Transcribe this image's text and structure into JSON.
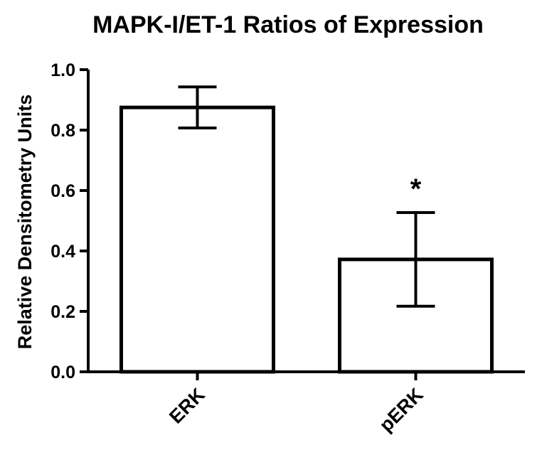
{
  "chart_data": {
    "type": "bar",
    "title": "MAPK-I/ET-1 Ratios of Expression",
    "xlabel": "",
    "ylabel": "Relative Densitometry Units",
    "ylim": [
      0,
      1.0
    ],
    "yticks": [
      "0.0",
      "0.2",
      "0.4",
      "0.6",
      "0.8",
      "1.0"
    ],
    "categories": [
      "ERK",
      "pERK"
    ],
    "values": [
      0.875,
      0.372
    ],
    "errors": [
      0.068,
      0.155
    ],
    "annotations": [
      {
        "category": "pERK",
        "text": "*"
      }
    ],
    "grid": false,
    "legend": "none",
    "bar_fill": "#ffffff",
    "bar_stroke": "#000000"
  }
}
